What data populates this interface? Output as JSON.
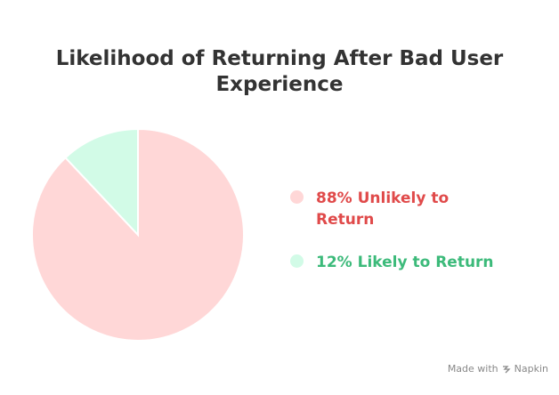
{
  "chart_data": {
    "type": "pie",
    "title": "Likelihood of Returning After Bad User Experience",
    "categories": [
      "88% Unlikely to Return",
      "12% Likely to Return"
    ],
    "values": [
      88,
      12
    ],
    "colors": [
      "#ffd7d7",
      "#d2fbe7"
    ],
    "label_colors": [
      "#e04a4a",
      "#3cba7a"
    ]
  },
  "credit": {
    "prefix": "Made with",
    "brand": "Napkin"
  }
}
